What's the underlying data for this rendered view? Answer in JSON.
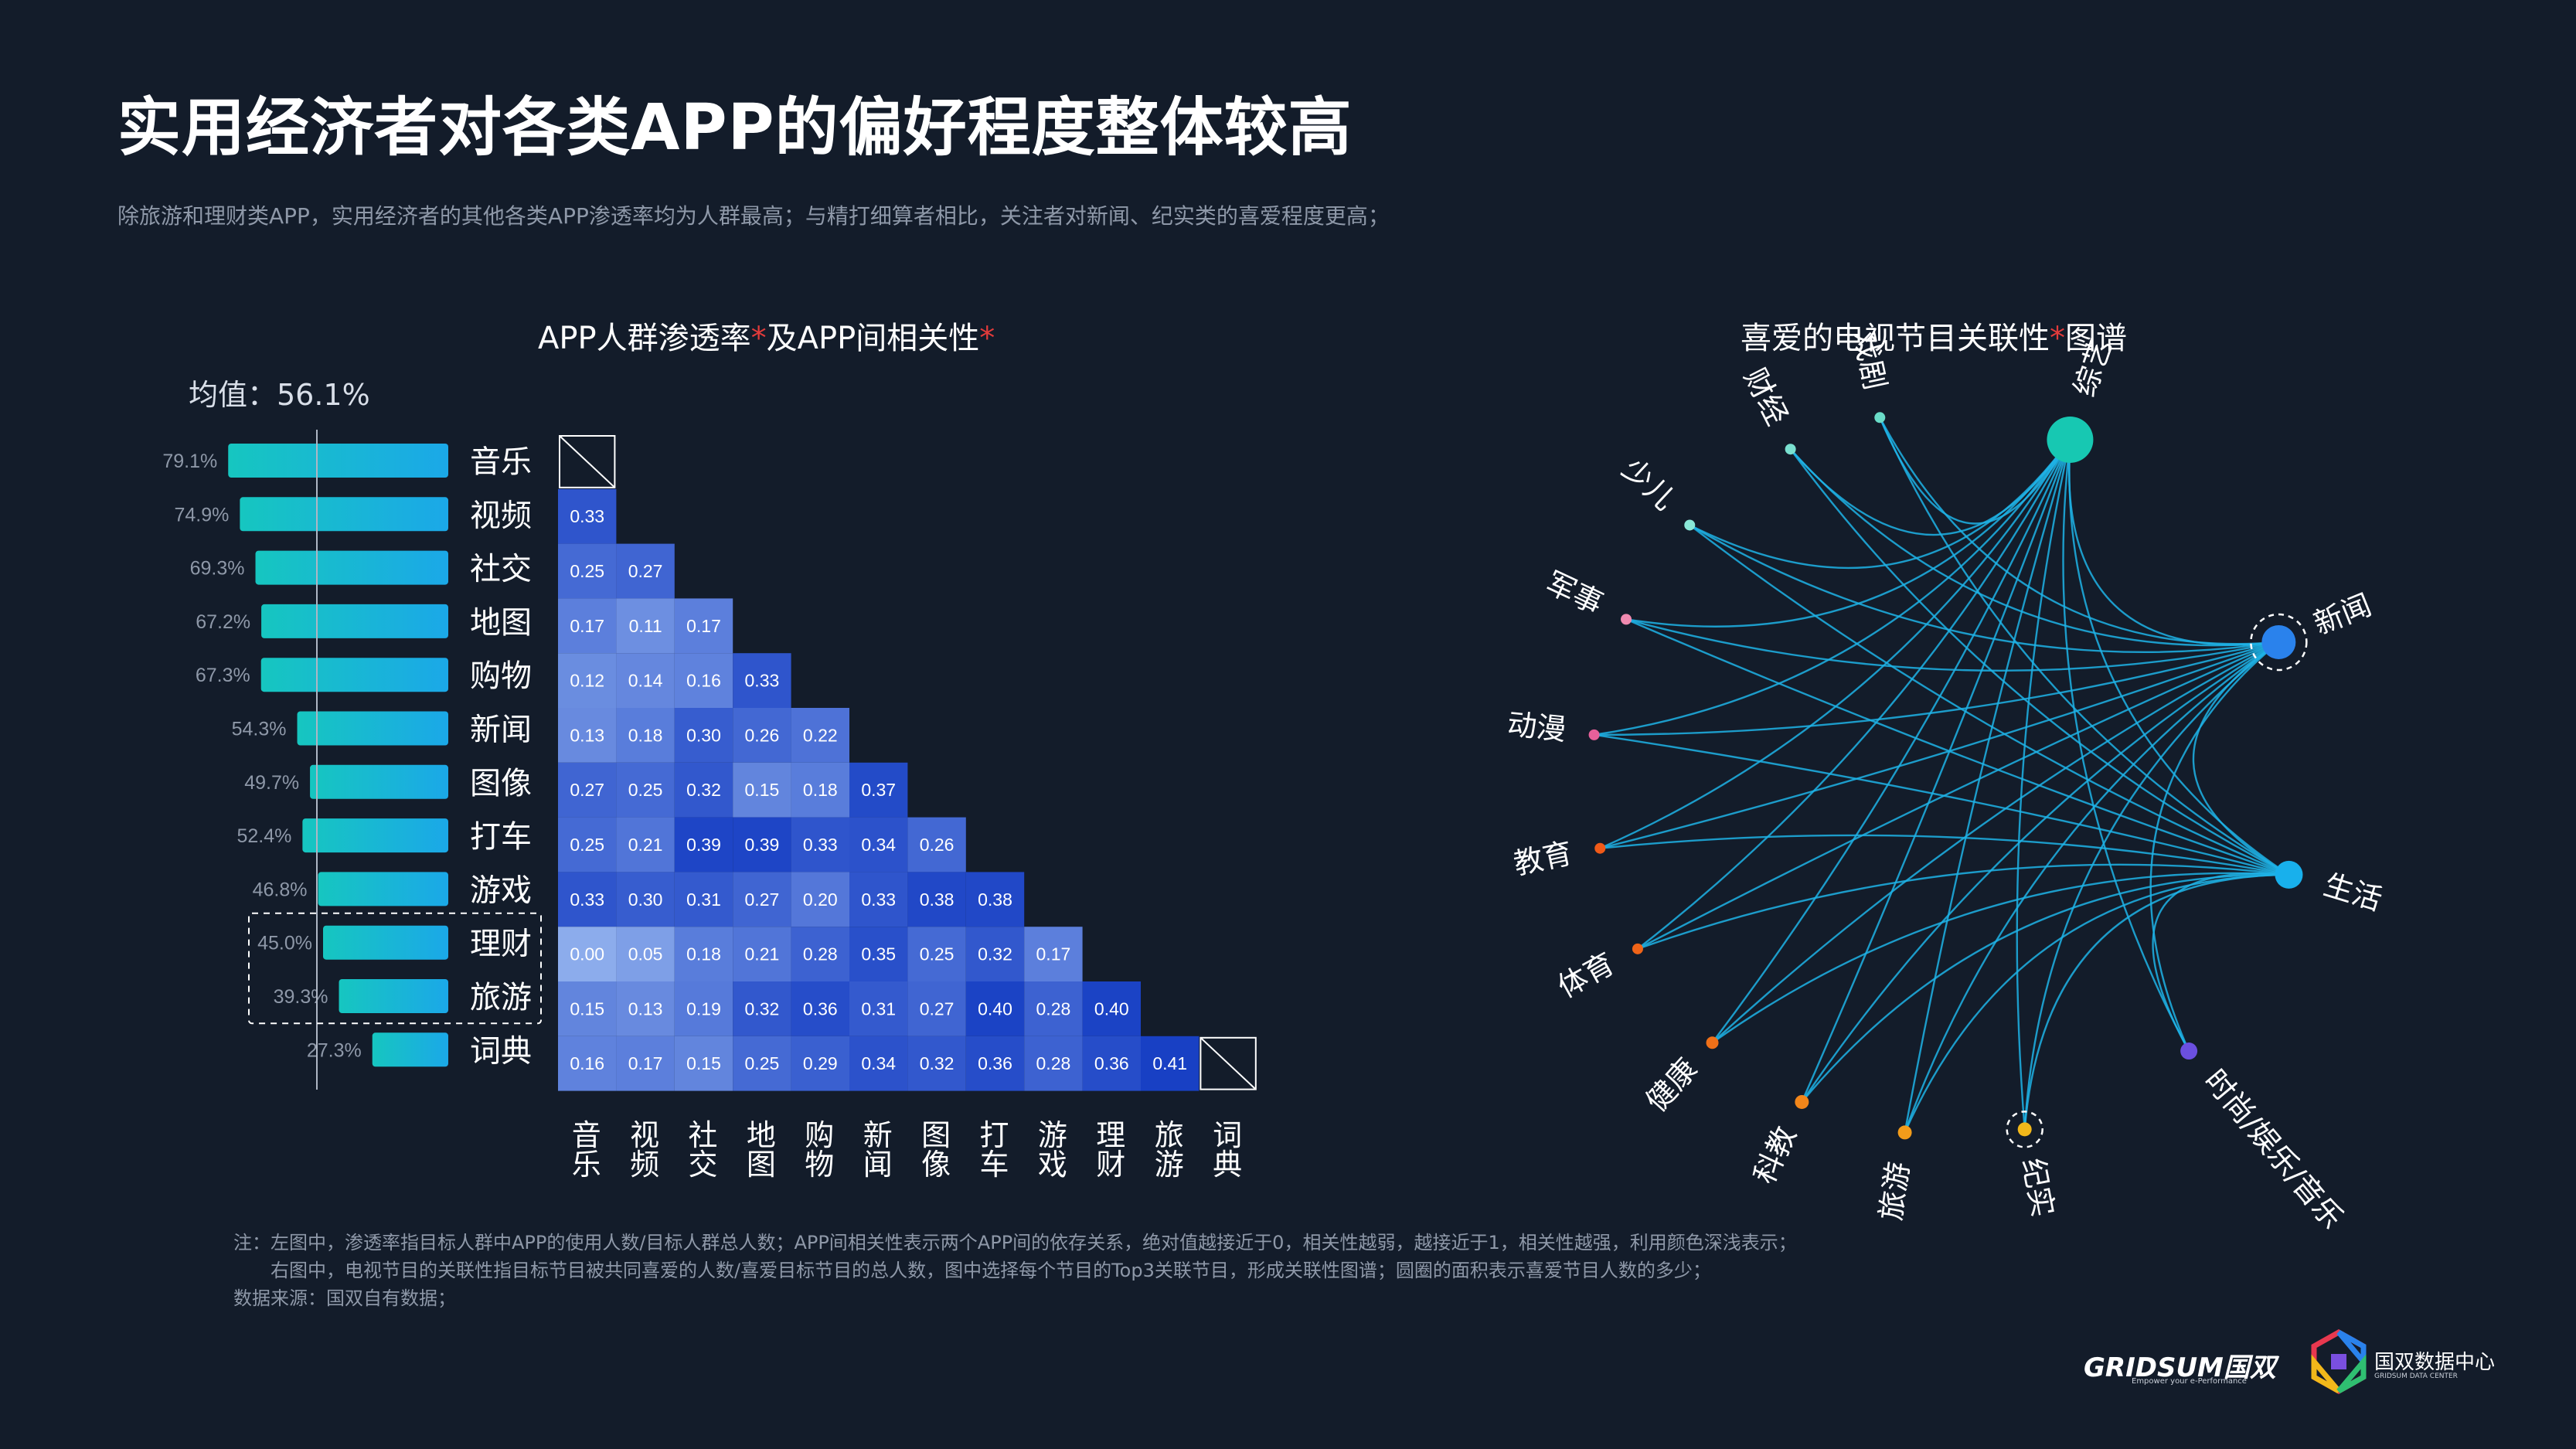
{
  "title": "实用经济者对各类APP的偏好程度整体较高",
  "subtitle": "除旅游和理财类APP，实用经济者的其他各类APP渗透率均为人群最高；与精打细算者相比，关注者对新闻、纪实类的喜爱程度更高；",
  "left_chart_title": {
    "text": "APP人群渗透率",
    "mid": "及APP间相关性",
    "star": "*"
  },
  "right_chart_title": {
    "text": "喜爱的电视节目关联性",
    "end": "图谱",
    "star": "*"
  },
  "mean_label": "均值：56.1%",
  "notes": [
    "注：左图中，渗透率指目标人群中APP的使用人数/目标人群总人数；APP间相关性表示两个APP间的依存关系，绝对值越接近于0，相关性越弱，越接近于1，相关性越强，利用颜色深浅表示；",
    "　　右图中，电视节目的关联性指目标节目被共同喜爱的人数/喜爱目标节目的总人数，图中选择每个节目的Top3关联节目，形成关联性图谱；圆圈的面积表示喜爱节目人数的多少；",
    "数据来源：国双自有数据；"
  ],
  "logos": {
    "gridsum": "GRIDSUM国双",
    "gridsum_sub": "Empower your e-Performance",
    "data_center": "国双数据中心",
    "data_center_sub": "GRIDSUM DATA CENTER"
  },
  "chart_data": [
    {
      "type": "bar",
      "orientation": "horizontal",
      "categories": [
        "音乐",
        "视频",
        "社交",
        "地图",
        "购物",
        "新闻",
        "图像",
        "打车",
        "游戏",
        "理财",
        "旅游",
        "词典"
      ],
      "values": [
        79.1,
        74.9,
        69.3,
        67.2,
        67.3,
        54.3,
        49.7,
        52.4,
        46.8,
        45.0,
        39.3,
        27.3
      ],
      "value_labels": [
        "79.1%",
        "74.9%",
        "69.3%",
        "67.2%",
        "67.3%",
        "54.3%",
        "49.7%",
        "52.4%",
        "46.8%",
        "45.0%",
        "39.3%",
        "27.3%"
      ],
      "mean": 56.1,
      "highlighted": [
        "理财",
        "旅游"
      ],
      "colors": {
        "bar_start": "#16c6c0",
        "bar_end": "#1ba8e8",
        "mean_line": "#aeb6c4"
      }
    },
    {
      "type": "heatmap",
      "layout": "lower-triangle",
      "rows": [
        "音乐",
        "视频",
        "社交",
        "地图",
        "购物",
        "新闻",
        "图像",
        "打车",
        "游戏",
        "理财",
        "旅游",
        "词典"
      ],
      "columns": [
        "音乐",
        "视频",
        "社交",
        "地图",
        "购物",
        "新闻",
        "图像",
        "打车",
        "游戏",
        "理财",
        "旅游",
        "词典"
      ],
      "values": [
        [],
        [
          0.33
        ],
        [
          0.25,
          0.27
        ],
        [
          0.17,
          0.11,
          0.17
        ],
        [
          0.12,
          0.14,
          0.16,
          0.33
        ],
        [
          0.13,
          0.18,
          0.3,
          0.26,
          0.22
        ],
        [
          0.27,
          0.25,
          0.32,
          0.15,
          0.18,
          0.37
        ],
        [
          0.25,
          0.21,
          0.39,
          0.39,
          0.33,
          0.34,
          0.26
        ],
        [
          0.33,
          0.3,
          0.31,
          0.27,
          0.2,
          0.33,
          0.38,
          0.38
        ],
        [
          0.0,
          0.05,
          0.18,
          0.21,
          0.28,
          0.35,
          0.25,
          0.32,
          0.17
        ],
        [
          0.15,
          0.13,
          0.19,
          0.32,
          0.36,
          0.31,
          0.27,
          0.4,
          0.28,
          0.4
        ],
        [
          0.16,
          0.17,
          0.15,
          0.25,
          0.29,
          0.34,
          0.32,
          0.36,
          0.28,
          0.36,
          0.41
        ]
      ],
      "labels": [
        [],
        [
          "0.33"
        ],
        [
          "0.25",
          "0.27"
        ],
        [
          "0.17",
          "0.11",
          "0.17"
        ],
        [
          "0.12",
          "0.14",
          "0.16",
          "0.33"
        ],
        [
          "0.13",
          "0.18",
          "0.30",
          "0.26",
          "0.22"
        ],
        [
          "0.27",
          "0.25",
          "0.32",
          "0.15",
          "0.18",
          "0.37"
        ],
        [
          "0.25",
          "0.21",
          "0.39",
          "0.39",
          "0.33",
          "0.34",
          "0.26"
        ],
        [
          "0.33",
          "0.30",
          "0.31",
          "0.27",
          "0.20",
          "0.33",
          "0.38",
          "0.38"
        ],
        [
          "0.00",
          "0.05",
          "0.18",
          "0.21",
          "0.28",
          "0.35",
          "0.25",
          "0.32",
          "0.17"
        ],
        [
          "0.15",
          "0.13",
          "0.19",
          "0.32",
          "0.36",
          "0.31",
          "0.27",
          "0.40",
          "0.28",
          "0.40"
        ],
        [
          "0.16",
          "0.17",
          "0.15",
          "0.25",
          "0.29",
          "0.34",
          "0.32",
          "0.36",
          "0.28",
          "0.36",
          "0.41"
        ]
      ],
      "colors": {
        "low": "#a6c4f5",
        "high": "#1840c4"
      }
    },
    {
      "type": "network",
      "nodes": [
        {
          "name": "综艺",
          "size": 3.0,
          "color": "#17c8b2"
        },
        {
          "name": "新闻",
          "size": 2.2,
          "color": "#2a82ec",
          "highlight": true
        },
        {
          "name": "生活",
          "size": 1.8,
          "color": "#18b0ec"
        },
        {
          "name": "时尚/娱乐/音乐",
          "size": 1.1,
          "color": "#6b4fe0"
        },
        {
          "name": "纪实",
          "size": 0.9,
          "color": "#f2b81a",
          "highlight": true
        },
        {
          "name": "旅游",
          "size": 0.9,
          "color": "#f39c1a"
        },
        {
          "name": "科教",
          "size": 0.9,
          "color": "#f2861a"
        },
        {
          "name": "健康",
          "size": 0.8,
          "color": "#f07018"
        },
        {
          "name": "体育",
          "size": 0.7,
          "color": "#f06418"
        },
        {
          "name": "教育",
          "size": 0.7,
          "color": "#f05a18"
        },
        {
          "name": "动漫",
          "size": 0.7,
          "color": "#e8609a"
        },
        {
          "name": "军事",
          "size": 0.7,
          "color": "#f08ab0"
        },
        {
          "name": "少儿",
          "size": 0.7,
          "color": "#8ae8d8"
        },
        {
          "name": "财经",
          "size": 0.7,
          "color": "#7ae0d0"
        },
        {
          "name": "戏剧",
          "size": 0.7,
          "color": "#6adcc8"
        }
      ],
      "edges": [
        [
          "少儿",
          "综艺"
        ],
        [
          "少儿",
          "新闻"
        ],
        [
          "少儿",
          "生活"
        ],
        [
          "财经",
          "综艺"
        ],
        [
          "财经",
          "新闻"
        ],
        [
          "财经",
          "生活"
        ],
        [
          "戏剧",
          "综艺"
        ],
        [
          "戏剧",
          "新闻"
        ],
        [
          "戏剧",
          "生活"
        ],
        [
          "军事",
          "综艺"
        ],
        [
          "军事",
          "新闻"
        ],
        [
          "军事",
          "生活"
        ],
        [
          "动漫",
          "综艺"
        ],
        [
          "动漫",
          "新闻"
        ],
        [
          "动漫",
          "生活"
        ],
        [
          "教育",
          "综艺"
        ],
        [
          "教育",
          "新闻"
        ],
        [
          "教育",
          "生活"
        ],
        [
          "体育",
          "综艺"
        ],
        [
          "体育",
          "新闻"
        ],
        [
          "体育",
          "生活"
        ],
        [
          "健康",
          "综艺"
        ],
        [
          "健康",
          "新闻"
        ],
        [
          "健康",
          "生活"
        ],
        [
          "科教",
          "综艺"
        ],
        [
          "科教",
          "新闻"
        ],
        [
          "科教",
          "生活"
        ],
        [
          "旅游",
          "综艺"
        ],
        [
          "旅游",
          "新闻"
        ],
        [
          "旅游",
          "生活"
        ],
        [
          "纪实",
          "综艺"
        ],
        [
          "纪实",
          "新闻"
        ],
        [
          "纪实",
          "生活"
        ],
        [
          "时尚/娱乐/音乐",
          "综艺"
        ],
        [
          "时尚/娱乐/音乐",
          "新闻"
        ],
        [
          "时尚/娱乐/音乐",
          "生活"
        ],
        [
          "综艺",
          "新闻"
        ],
        [
          "综艺",
          "生活"
        ],
        [
          "新闻",
          "生活"
        ]
      ],
      "edge_color": "#1fb3e6"
    }
  ]
}
